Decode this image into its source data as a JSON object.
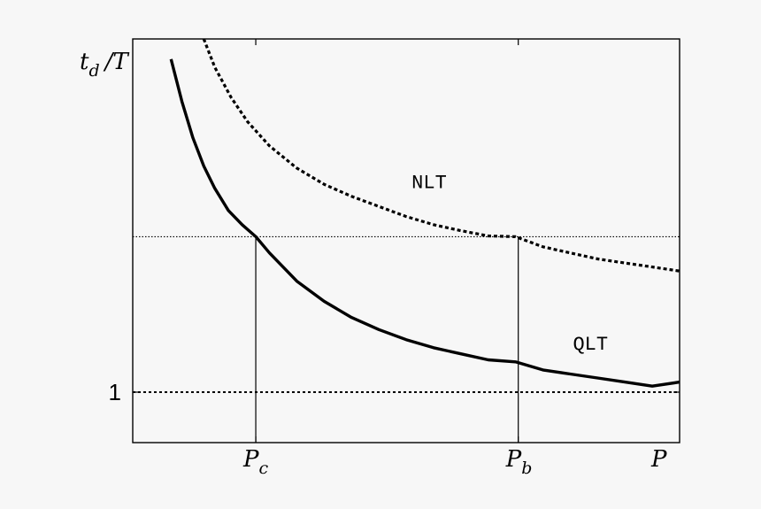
{
  "chart_data": {
    "type": "line",
    "title": "",
    "ylabel": {
      "main": "t",
      "sub": "d",
      "suffix": "/T"
    },
    "xlabel": "P",
    "xlim": [
      0,
      10
    ],
    "ylim": [
      0,
      10
    ],
    "x_ticks": [
      {
        "value": 2.25,
        "main": "P",
        "sub": "c"
      },
      {
        "value": 7.05,
        "main": "P",
        "sub": "b"
      }
    ],
    "y_ticks": [
      {
        "value": 1.25,
        "label": "1"
      }
    ],
    "reference_lines": [
      {
        "kind": "horizontal",
        "y": 1.25,
        "style": "dotted"
      },
      {
        "kind": "horizontal",
        "y": 5.1,
        "style": "dotted-fine"
      },
      {
        "kind": "vertical",
        "x": 2.25,
        "y_to": 5.1
      },
      {
        "kind": "vertical",
        "x": 7.05,
        "y_to": 5.1
      }
    ],
    "series": [
      {
        "name": "NLT",
        "style": "dashed",
        "x": [
          1.3,
          1.5,
          1.8,
          2.1,
          2.5,
          3.0,
          3.5,
          4.0,
          4.5,
          5.0,
          5.5,
          6.0,
          6.5,
          7.0,
          7.5,
          8.0,
          8.5,
          9.0,
          9.5,
          10.0
        ],
        "y": [
          10.0,
          9.3,
          8.55,
          7.95,
          7.35,
          6.8,
          6.4,
          6.1,
          5.85,
          5.6,
          5.4,
          5.25,
          5.12,
          5.1,
          4.85,
          4.7,
          4.55,
          4.45,
          4.35,
          4.25
        ]
      },
      {
        "name": "QLT",
        "style": "solid",
        "x": [
          0.7,
          0.9,
          1.1,
          1.3,
          1.5,
          1.75,
          2.0,
          2.25,
          2.5,
          3.0,
          3.5,
          4.0,
          4.5,
          5.0,
          5.5,
          6.0,
          6.5,
          7.0,
          7.5,
          8.0,
          8.5,
          9.0,
          9.5,
          10.0
        ],
        "y": [
          9.5,
          8.45,
          7.55,
          6.85,
          6.3,
          5.75,
          5.4,
          5.1,
          4.7,
          4.0,
          3.5,
          3.1,
          2.8,
          2.55,
          2.35,
          2.2,
          2.05,
          2.0,
          1.8,
          1.7,
          1.6,
          1.5,
          1.4,
          1.5
        ]
      }
    ],
    "annotations": [
      {
        "text": "NLT",
        "x": 5.1,
        "y": 6.3
      },
      {
        "text": "QLT",
        "x": 8.05,
        "y": 2.3
      }
    ],
    "grid": false,
    "legend": "none"
  }
}
